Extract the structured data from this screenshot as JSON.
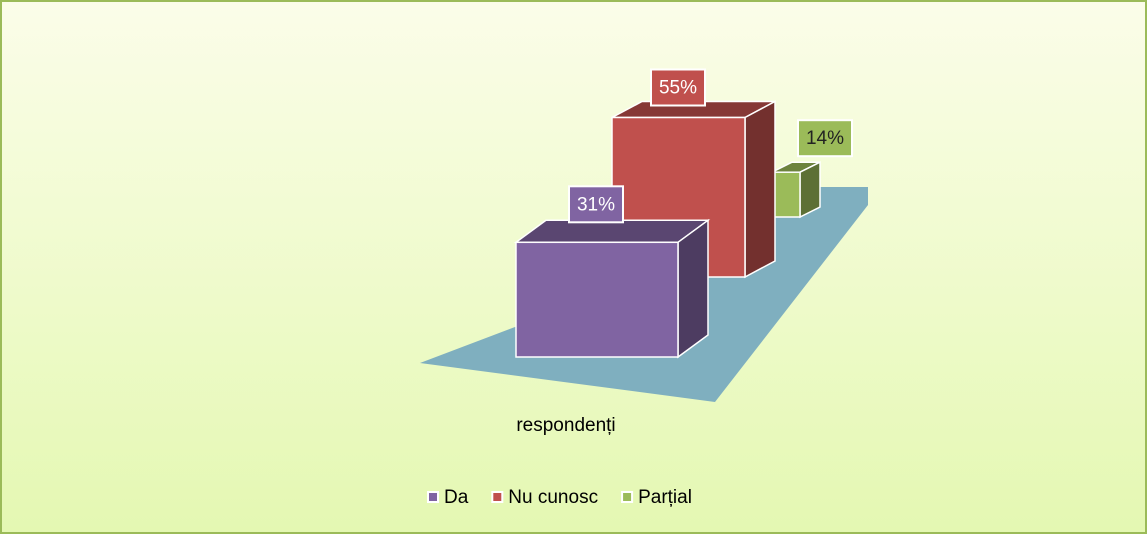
{
  "chart_data": {
    "type": "bar3d",
    "categories": [
      "respondenți"
    ],
    "series": [
      {
        "name": "Da",
        "color": "#8064a2",
        "values": [
          31
        ],
        "value_labels": [
          "31%"
        ]
      },
      {
        "name": "Nu cunosc",
        "color": "#c0504d",
        "values": [
          55
        ],
        "value_labels": [
          "55%"
        ]
      },
      {
        "name": "Parțial",
        "color": "#9bbb59",
        "values": [
          14
        ],
        "value_labels": [
          "14%"
        ]
      }
    ],
    "legend": "bottom"
  }
}
